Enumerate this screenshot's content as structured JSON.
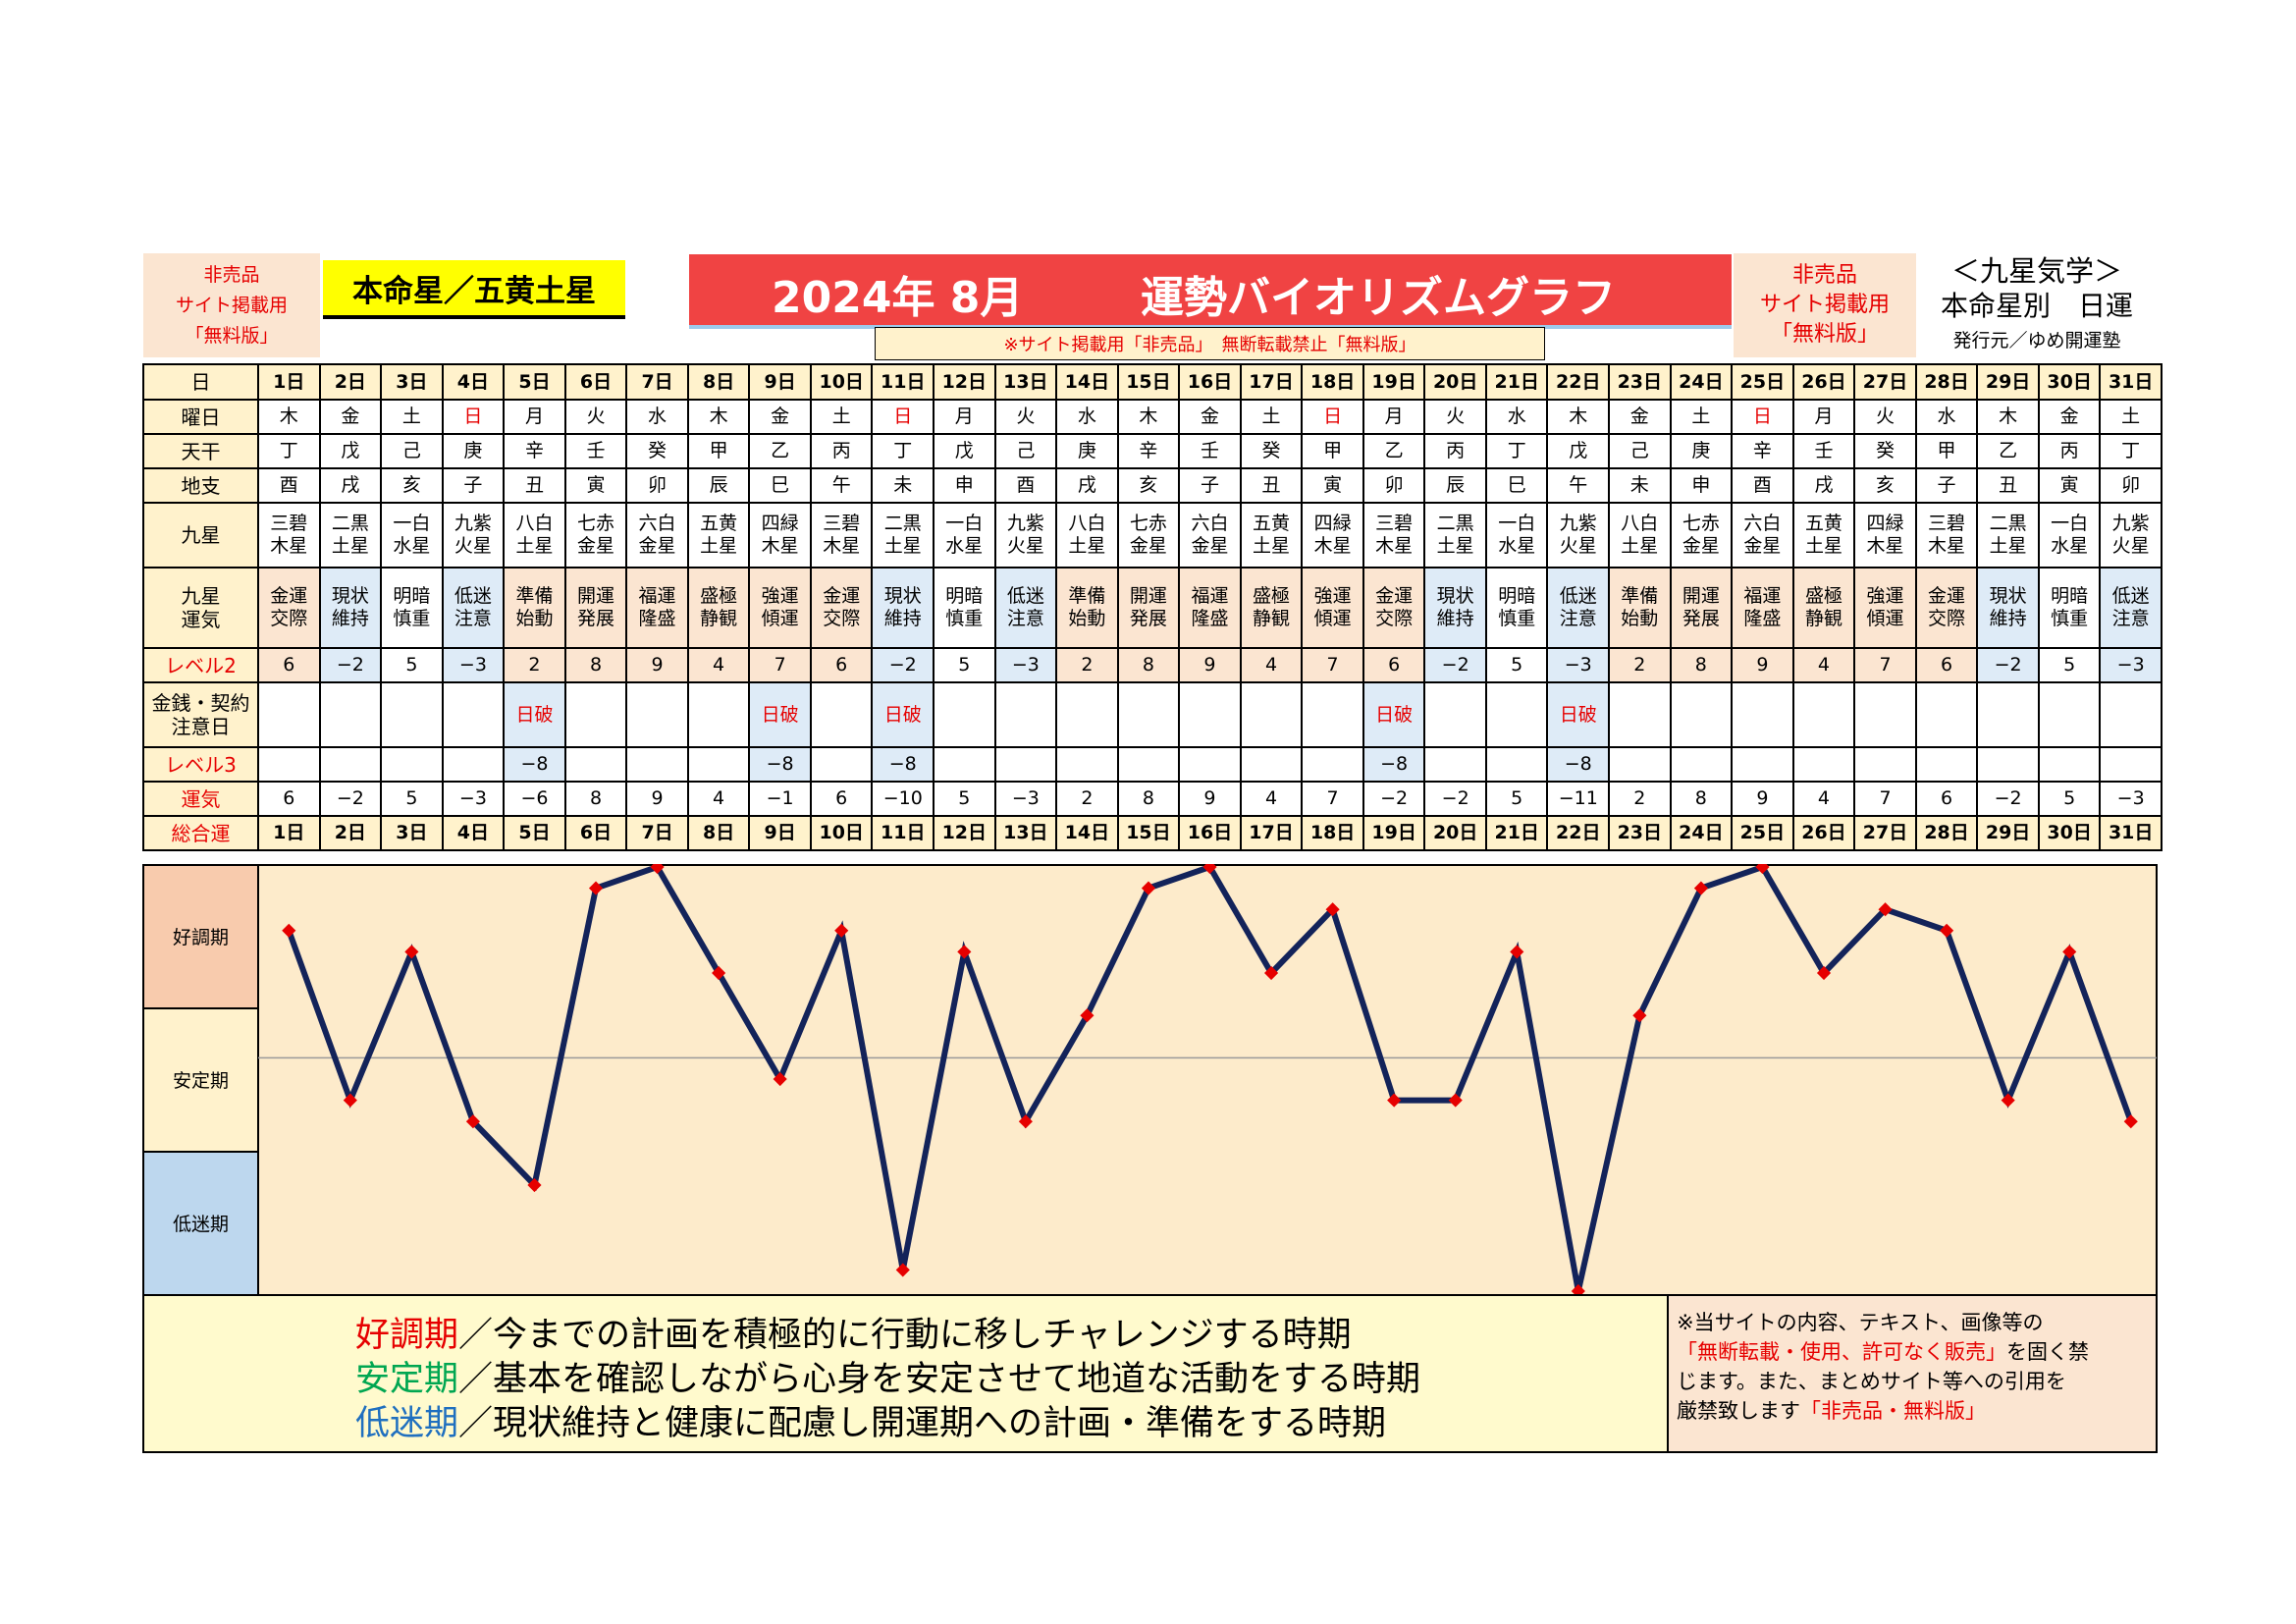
{
  "header": {
    "left_note": [
      "非売品",
      "サイト掲載用",
      "「無料版」"
    ],
    "star_title": "本命星／五黄土星",
    "title_date": "2024年 8月",
    "title_main": "運勢バイオリズムグラフ",
    "notice": "※サイト掲載用「非売品」　無断転載禁止「無料版」",
    "right_note": [
      "非売品",
      "サイト掲載用",
      "「無料版」"
    ],
    "kyusei": [
      "＜九星気学＞",
      "本命星別　日運",
      "発行元／ゆめ開運塾"
    ]
  },
  "row_labels": {
    "day": "日",
    "weekday": "曜日",
    "tenkan": "天干",
    "chishi": "地支",
    "kyusei": "九星",
    "kyusei_unki": [
      "九星",
      "運気"
    ],
    "level2": "レベル2",
    "money": [
      "金銭・契約",
      "注意日"
    ],
    "level3": "レベル3",
    "total": [
      "運気",
      "総合運"
    ]
  },
  "days": [
    "1日",
    "2日",
    "3日",
    "4日",
    "5日",
    "6日",
    "7日",
    "8日",
    "9日",
    "10日",
    "11日",
    "12日",
    "13日",
    "14日",
    "15日",
    "16日",
    "17日",
    "18日",
    "19日",
    "20日",
    "21日",
    "22日",
    "23日",
    "24日",
    "25日",
    "26日",
    "27日",
    "28日",
    "29日",
    "30日",
    "31日"
  ],
  "weekdays": [
    "木",
    "金",
    "土",
    "日",
    "月",
    "火",
    "水",
    "木",
    "金",
    "土",
    "日",
    "月",
    "火",
    "水",
    "木",
    "金",
    "土",
    "日",
    "月",
    "火",
    "水",
    "木",
    "金",
    "土",
    "日",
    "月",
    "火",
    "水",
    "木",
    "金",
    "土"
  ],
  "tenkan": [
    "丁",
    "戊",
    "己",
    "庚",
    "辛",
    "壬",
    "癸",
    "甲",
    "乙",
    "丙",
    "丁",
    "戊",
    "己",
    "庚",
    "辛",
    "壬",
    "癸",
    "甲",
    "乙",
    "丙",
    "丁",
    "戊",
    "己",
    "庚",
    "辛",
    "壬",
    "癸",
    "甲",
    "乙",
    "丙",
    "丁"
  ],
  "chishi": [
    "酉",
    "戌",
    "亥",
    "子",
    "丑",
    "寅",
    "卯",
    "辰",
    "巳",
    "午",
    "未",
    "申",
    "酉",
    "戌",
    "亥",
    "子",
    "丑",
    "寅",
    "卯",
    "辰",
    "巳",
    "午",
    "未",
    "申",
    "酉",
    "戌",
    "亥",
    "子",
    "丑",
    "寅",
    "卯"
  ],
  "kyusei": [
    [
      "三碧",
      "木星"
    ],
    [
      "二黒",
      "土星"
    ],
    [
      "一白",
      "水星"
    ],
    [
      "九紫",
      "火星"
    ],
    [
      "八白",
      "土星"
    ],
    [
      "七赤",
      "金星"
    ],
    [
      "六白",
      "金星"
    ],
    [
      "五黄",
      "土星"
    ],
    [
      "四緑",
      "木星"
    ],
    [
      "三碧",
      "木星"
    ],
    [
      "二黒",
      "土星"
    ],
    [
      "一白",
      "水星"
    ],
    [
      "九紫",
      "火星"
    ],
    [
      "八白",
      "土星"
    ],
    [
      "七赤",
      "金星"
    ],
    [
      "六白",
      "金星"
    ],
    [
      "五黄",
      "土星"
    ],
    [
      "四緑",
      "木星"
    ],
    [
      "三碧",
      "木星"
    ],
    [
      "二黒",
      "土星"
    ],
    [
      "一白",
      "水星"
    ],
    [
      "九紫",
      "火星"
    ],
    [
      "八白",
      "土星"
    ],
    [
      "七赤",
      "金星"
    ],
    [
      "六白",
      "金星"
    ],
    [
      "五黄",
      "土星"
    ],
    [
      "四緑",
      "木星"
    ],
    [
      "三碧",
      "木星"
    ],
    [
      "二黒",
      "土星"
    ],
    [
      "一白",
      "水星"
    ],
    [
      "九紫",
      "火星"
    ]
  ],
  "unki": [
    [
      "金運",
      "交際"
    ],
    [
      "現状",
      "維持"
    ],
    [
      "明暗",
      "慎重"
    ],
    [
      "低迷",
      "注意"
    ],
    [
      "準備",
      "始動"
    ],
    [
      "開運",
      "発展"
    ],
    [
      "福運",
      "隆盛"
    ],
    [
      "盛極",
      "静観"
    ],
    [
      "強運",
      "傾運"
    ],
    [
      "金運",
      "交際"
    ],
    [
      "現状",
      "維持"
    ],
    [
      "明暗",
      "慎重"
    ],
    [
      "低迷",
      "注意"
    ],
    [
      "準備",
      "始動"
    ],
    [
      "開運",
      "発展"
    ],
    [
      "福運",
      "隆盛"
    ],
    [
      "盛極",
      "静観"
    ],
    [
      "強運",
      "傾運"
    ],
    [
      "金運",
      "交際"
    ],
    [
      "現状",
      "維持"
    ],
    [
      "明暗",
      "慎重"
    ],
    [
      "低迷",
      "注意"
    ],
    [
      "準備",
      "始動"
    ],
    [
      "開運",
      "発展"
    ],
    [
      "福運",
      "隆盛"
    ],
    [
      "盛極",
      "静観"
    ],
    [
      "強運",
      "傾運"
    ],
    [
      "金運",
      "交際"
    ],
    [
      "現状",
      "維持"
    ],
    [
      "明暗",
      "慎重"
    ],
    [
      "低迷",
      "注意"
    ]
  ],
  "unki_tone": [
    "good",
    "low",
    "mid",
    "low",
    "good",
    "good",
    "good",
    "good",
    "good",
    "good",
    "low",
    "mid",
    "low",
    "good",
    "good",
    "good",
    "good",
    "good",
    "good",
    "low",
    "mid",
    "low",
    "good",
    "good",
    "good",
    "good",
    "good",
    "good",
    "low",
    "mid",
    "low"
  ],
  "level2": [
    "6",
    "−2",
    "5",
    "−3",
    "2",
    "8",
    "9",
    "4",
    "7",
    "6",
    "−2",
    "5",
    "−3",
    "2",
    "8",
    "9",
    "4",
    "7",
    "6",
    "−2",
    "5",
    "−3",
    "2",
    "8",
    "9",
    "4",
    "7",
    "6",
    "−2",
    "5",
    "−3"
  ],
  "money": [
    "",
    "",
    "",
    "",
    "日破",
    "",
    "",
    "",
    "日破",
    "",
    "日破",
    "",
    "",
    "",
    "",
    "",
    "",
    "",
    "日破",
    "",
    "",
    "日破",
    "",
    "",
    "",
    "",
    "",
    "",
    "",
    "",
    ""
  ],
  "level3": [
    "",
    "",
    "",
    "",
    "−8",
    "",
    "",
    "",
    "−8",
    "",
    "−8",
    "",
    "",
    "",
    "",
    "",
    "",
    "",
    "−8",
    "",
    "",
    "−8",
    "",
    "",
    "",
    "",
    "",
    "",
    "",
    "",
    ""
  ],
  "total": [
    "6",
    "−2",
    "5",
    "−3",
    "−6",
    "8",
    "9",
    "4",
    "−1",
    "6",
    "−10",
    "5",
    "−3",
    "2",
    "8",
    "9",
    "4",
    "7",
    "−2",
    "−2",
    "5",
    "−11",
    "2",
    "8",
    "9",
    "4",
    "7",
    "6",
    "−2",
    "5",
    "−3"
  ],
  "chart_data": {
    "type": "line",
    "x": [
      "1日",
      "2日",
      "3日",
      "4日",
      "5日",
      "6日",
      "7日",
      "8日",
      "9日",
      "10日",
      "11日",
      "12日",
      "13日",
      "14日",
      "15日",
      "16日",
      "17日",
      "18日",
      "19日",
      "20日",
      "21日",
      "22日",
      "23日",
      "24日",
      "25日",
      "26日",
      "27日",
      "28日",
      "29日",
      "30日",
      "31日"
    ],
    "values": [
      6,
      -2,
      5,
      -3,
      -6,
      8,
      9,
      4,
      -1,
      6,
      -10,
      5,
      -3,
      2,
      8,
      9,
      4,
      7,
      -2,
      -2,
      5,
      -11,
      2,
      8,
      9,
      4,
      7,
      6,
      -2,
      5,
      -3
    ],
    "ylim": [
      -11,
      9
    ],
    "bands": [
      "好調期",
      "安定期",
      "低迷期"
    ],
    "line_color": "#13235a",
    "marker_color": "#e60000"
  },
  "legend": {
    "good_label": "好調期",
    "good_text": "／今までの計画を積極的に行動に移しチャレンジする時期",
    "stable_label": "安定期",
    "stable_text": "／基本を確認しながら心身を安定させて地道な活動をする時期",
    "low_label": "低迷期",
    "low_text": "／現状維持と健康に配慮し開運期への計画・準備をする時期"
  },
  "copyright": {
    "line1": "※当サイトの内容、テキスト、画像等の",
    "line2_red": "「無断転載・使用、許可なく販売」",
    "line2_rest": "を固く禁",
    "line3": "じます。また、まとめサイト等への引用を",
    "line4": "厳禁致します",
    "line4_red": "「非売品・無料版」"
  },
  "colors": {
    "title_bg": "#f04343",
    "accent_red": "#e60000",
    "band_good": "#f8cbad",
    "band_stable": "#fff2cc",
    "band_low": "#bdd7ee",
    "plot_bg": "#fdebcb"
  }
}
